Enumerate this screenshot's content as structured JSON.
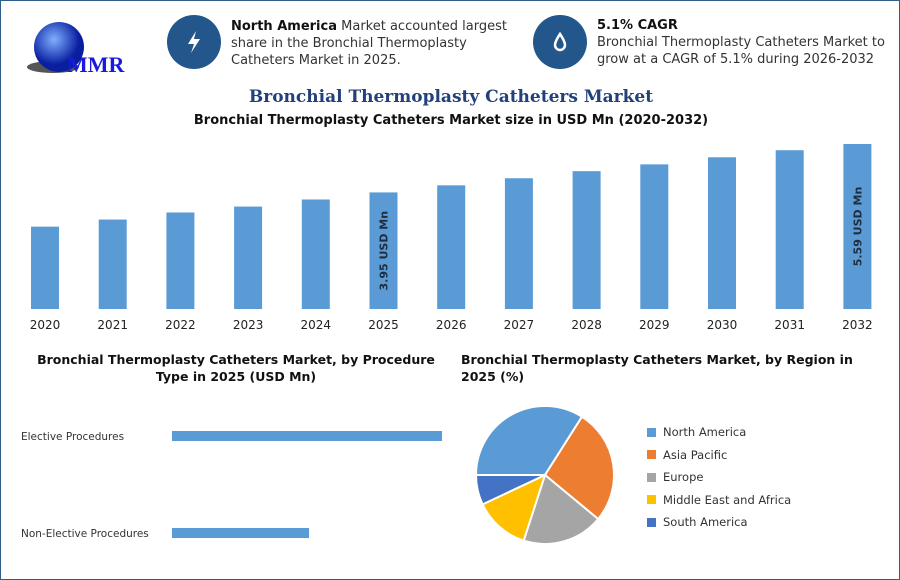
{
  "logo": {
    "text": "MMR"
  },
  "highlights": [
    {
      "icon": "lightning-icon",
      "bold": "North America",
      "text": " Market accounted largest share in the Bronchial Thermoplasty Catheters Market in 2025."
    },
    {
      "icon": "drop-icon",
      "bold": "5.1% CAGR",
      "text": "Bronchial Thermoplasty Catheters Market to grow at a CAGR of 5.1% during 2026-2032"
    }
  ],
  "title": "Bronchial Thermoplasty Catheters Market",
  "colors": {
    "bar": "#5b9bd5",
    "title": "#22407a",
    "icon_bg": "#23578b"
  },
  "chart_data": [
    {
      "type": "bar",
      "title": "Bronchial Thermoplasty Catheters Market size in USD Mn (2020-2032)",
      "categories": [
        "2020",
        "2021",
        "2022",
        "2023",
        "2024",
        "2025",
        "2026",
        "2027",
        "2028",
        "2029",
        "2030",
        "2031",
        "2032"
      ],
      "values": [
        2.79,
        3.03,
        3.27,
        3.47,
        3.71,
        3.95,
        4.19,
        4.43,
        4.67,
        4.9,
        5.14,
        5.38,
        5.59
      ],
      "data_labels": {
        "2025": "3.95 USD Mn",
        "2032": "5.59 USD Mn"
      },
      "grid": false
    },
    {
      "type": "bar",
      "orientation": "horizontal",
      "title": "Bronchial Thermoplasty Catheters Market, by Procedure Type in 2025 (USD Mn)",
      "categories": [
        "Elective Procedures",
        "Non-Elective Procedures"
      ],
      "values": [
        2.62,
        1.33
      ]
    },
    {
      "type": "pie",
      "title": "Bronchial Thermoplasty Catheters Market, by Region in 2025 (%)",
      "legend_position": "right",
      "slices": [
        {
          "name": "North America",
          "value": 34,
          "color": "#5b9bd5"
        },
        {
          "name": "Asia Pacific",
          "value": 27,
          "color": "#ed7d31"
        },
        {
          "name": "Europe",
          "value": 19,
          "color": "#a5a5a5"
        },
        {
          "name": "Middle East and Africa",
          "value": 13,
          "color": "#ffc000"
        },
        {
          "name": "South America",
          "value": 7,
          "color": "#4472c4"
        }
      ]
    }
  ]
}
